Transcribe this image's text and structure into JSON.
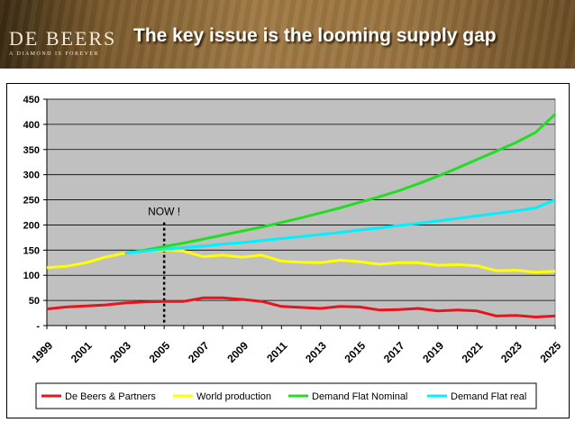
{
  "header": {
    "logo_text": "De Beers",
    "logo_tagline": "A DIAMOND IS FOREVER",
    "title": "The key issue is the looming supply gap"
  },
  "chart_data": {
    "type": "line",
    "title": "",
    "xlabel": "",
    "ylabel": "",
    "ylim": [
      0,
      450
    ],
    "yticks": [
      0,
      50,
      100,
      150,
      200,
      250,
      300,
      350,
      400,
      450
    ],
    "ytick_labels": [
      "-",
      "50",
      "100",
      "150",
      "200",
      "250",
      "300",
      "350",
      "400",
      "450"
    ],
    "xticks": [
      "1999",
      "2001",
      "2003",
      "2005",
      "2007",
      "2009",
      "2011",
      "2013",
      "2015",
      "2017",
      "2019",
      "2021",
      "2023",
      "2025"
    ],
    "grid": "horizontal",
    "plot_background": "#c0c0c0",
    "legend_position": "bottom",
    "annotation": {
      "text": "NOW !",
      "x": 2005
    },
    "series": [
      {
        "name": "De Beers & Partners",
        "color": "#e8141c",
        "x": [
          1999,
          2000,
          2001,
          2002,
          2003,
          2004,
          2005,
          2006,
          2007,
          2008,
          2009,
          2010,
          2011,
          2012,
          2013,
          2014,
          2015,
          2016,
          2017,
          2018,
          2019,
          2020,
          2021,
          2022,
          2023,
          2024,
          2025
        ],
        "values": [
          33,
          37,
          39,
          41,
          45,
          47,
          48,
          48,
          55,
          55,
          52,
          48,
          38,
          36,
          34,
          38,
          37,
          31,
          32,
          34,
          29,
          31,
          29,
          19,
          20,
          17,
          19
        ]
      },
      {
        "name": "World production",
        "color": "#ffff00",
        "x": [
          1999,
          2000,
          2001,
          2002,
          2003,
          2004,
          2005,
          2006,
          2007,
          2008,
          2009,
          2010,
          2011,
          2012,
          2013,
          2014,
          2015,
          2016,
          2017,
          2018,
          2019,
          2020,
          2021,
          2022,
          2023,
          2024,
          2025
        ],
        "values": [
          115,
          118,
          125,
          136,
          144,
          148,
          150,
          148,
          137,
          140,
          136,
          140,
          128,
          126,
          125,
          130,
          127,
          122,
          125,
          125,
          120,
          121,
          119,
          109,
          110,
          106,
          108
        ]
      },
      {
        "name": "Demand Flat Nominal",
        "color": "#22dd22",
        "x": [
          2003,
          2004,
          2005,
          2006,
          2007,
          2008,
          2009,
          2010,
          2011,
          2012,
          2013,
          2014,
          2015,
          2016,
          2017,
          2018,
          2019,
          2020,
          2021,
          2022,
          2023,
          2024,
          2025
        ],
        "values": [
          144,
          150,
          157,
          164,
          172,
          180,
          188,
          196,
          205,
          214,
          224,
          234,
          245,
          256,
          268,
          282,
          297,
          313,
          330,
          347,
          364,
          384,
          420
        ]
      },
      {
        "name": "Demand Flat real",
        "color": "#00f0ff",
        "x": [
          2003,
          2004,
          2005,
          2006,
          2007,
          2008,
          2009,
          2010,
          2011,
          2012,
          2013,
          2014,
          2015,
          2016,
          2017,
          2018,
          2019,
          2020,
          2021,
          2022,
          2023,
          2024,
          2025
        ],
        "values": [
          144,
          148,
          152,
          155,
          158,
          162,
          165,
          169,
          173,
          177,
          181,
          185,
          190,
          194,
          199,
          203,
          208,
          213,
          218,
          223,
          228,
          234,
          250
        ]
      }
    ]
  }
}
